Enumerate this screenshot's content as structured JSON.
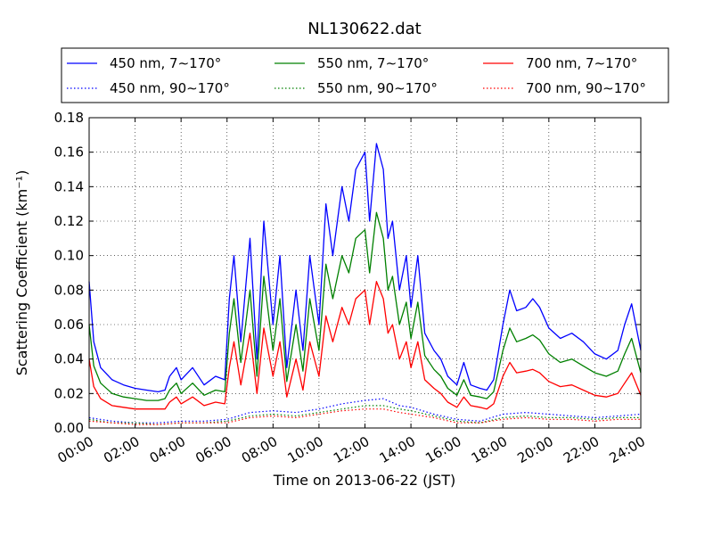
{
  "chart_data": {
    "type": "line",
    "title": "NL130622.dat",
    "xlabel": "Time on 2013-06-22 (JST)",
    "ylabel": "Scattering Coefficient (km⁻¹)",
    "xlim": [
      0,
      24
    ],
    "ylim": [
      0,
      0.18
    ],
    "x_ticks": [
      0,
      2,
      4,
      6,
      8,
      10,
      12,
      14,
      16,
      18,
      20,
      22,
      24
    ],
    "x_tick_labels": [
      "00:00",
      "02:00",
      "04:00",
      "06:00",
      "08:00",
      "10:00",
      "12:00",
      "14:00",
      "16:00",
      "18:00",
      "20:00",
      "22:00",
      "24:00"
    ],
    "y_ticks": [
      0,
      0.02,
      0.04,
      0.06,
      0.08,
      0.1,
      0.12,
      0.14,
      0.16,
      0.18
    ],
    "y_tick_labels": [
      "0.00",
      "0.02",
      "0.04",
      "0.06",
      "0.08",
      "0.10",
      "0.12",
      "0.14",
      "0.16",
      "0.18"
    ],
    "grid": true,
    "legend_position": "top",
    "series": [
      {
        "name": "450 nm, 7∼170°",
        "color": "#0000ff",
        "style": "solid",
        "x": [
          0,
          0.2,
          0.5,
          1,
          1.5,
          2,
          2.5,
          3,
          3.3,
          3.5,
          3.8,
          4,
          4.5,
          5,
          5.5,
          5.9,
          6.1,
          6.3,
          6.6,
          7,
          7.3,
          7.6,
          8,
          8.3,
          8.6,
          9,
          9.3,
          9.6,
          10,
          10.3,
          10.6,
          11,
          11.3,
          11.6,
          12,
          12.2,
          12.5,
          12.8,
          13,
          13.2,
          13.5,
          13.8,
          14,
          14.3,
          14.6,
          15,
          15.3,
          15.6,
          16,
          16.3,
          16.6,
          17,
          17.3,
          17.6,
          18,
          18.3,
          18.6,
          19,
          19.3,
          19.6,
          20,
          20.5,
          21,
          21.5,
          22,
          22.5,
          23,
          23.3,
          23.6,
          24
        ],
        "values": [
          0.085,
          0.05,
          0.035,
          0.028,
          0.025,
          0.023,
          0.022,
          0.021,
          0.022,
          0.03,
          0.035,
          0.028,
          0.035,
          0.025,
          0.03,
          0.028,
          0.075,
          0.1,
          0.05,
          0.11,
          0.04,
          0.12,
          0.06,
          0.1,
          0.035,
          0.08,
          0.045,
          0.1,
          0.06,
          0.13,
          0.1,
          0.14,
          0.12,
          0.15,
          0.16,
          0.12,
          0.165,
          0.15,
          0.11,
          0.12,
          0.08,
          0.1,
          0.07,
          0.1,
          0.055,
          0.045,
          0.04,
          0.03,
          0.025,
          0.038,
          0.025,
          0.023,
          0.022,
          0.028,
          0.06,
          0.08,
          0.068,
          0.07,
          0.075,
          0.07,
          0.058,
          0.052,
          0.055,
          0.05,
          0.043,
          0.04,
          0.045,
          0.06,
          0.072,
          0.045
        ]
      },
      {
        "name": "450 nm, 90∼170°",
        "color": "#0000ff",
        "style": "dotted",
        "x": [
          0,
          1,
          2,
          3,
          4,
          5,
          6,
          7,
          8,
          9,
          10,
          11,
          12,
          12.8,
          13.5,
          14,
          15,
          16,
          17,
          18,
          19,
          20,
          21,
          22,
          23,
          24
        ],
        "values": [
          0.006,
          0.004,
          0.003,
          0.003,
          0.004,
          0.004,
          0.005,
          0.009,
          0.01,
          0.009,
          0.011,
          0.014,
          0.016,
          0.017,
          0.013,
          0.012,
          0.008,
          0.005,
          0.004,
          0.008,
          0.009,
          0.008,
          0.007,
          0.006,
          0.007,
          0.008
        ]
      },
      {
        "name": "550 nm, 7∼170°",
        "color": "#008000",
        "style": "solid",
        "x": [
          0,
          0.2,
          0.5,
          1,
          1.5,
          2,
          2.5,
          3,
          3.3,
          3.5,
          3.8,
          4,
          4.5,
          5,
          5.5,
          5.9,
          6.1,
          6.3,
          6.6,
          7,
          7.3,
          7.6,
          8,
          8.3,
          8.6,
          9,
          9.3,
          9.6,
          10,
          10.3,
          10.6,
          11,
          11.3,
          11.6,
          12,
          12.2,
          12.5,
          12.8,
          13,
          13.2,
          13.5,
          13.8,
          14,
          14.3,
          14.6,
          15,
          15.3,
          15.6,
          16,
          16.3,
          16.6,
          17,
          17.3,
          17.6,
          18,
          18.3,
          18.6,
          19,
          19.3,
          19.6,
          20,
          20.5,
          21,
          21.5,
          22,
          22.5,
          23,
          23.3,
          23.6,
          24
        ],
        "values": [
          0.06,
          0.036,
          0.026,
          0.02,
          0.018,
          0.017,
          0.016,
          0.016,
          0.017,
          0.022,
          0.026,
          0.02,
          0.026,
          0.019,
          0.022,
          0.021,
          0.055,
          0.075,
          0.038,
          0.08,
          0.03,
          0.088,
          0.045,
          0.075,
          0.027,
          0.06,
          0.033,
          0.075,
          0.045,
          0.095,
          0.075,
          0.1,
          0.09,
          0.11,
          0.115,
          0.09,
          0.125,
          0.11,
          0.08,
          0.088,
          0.06,
          0.073,
          0.052,
          0.073,
          0.042,
          0.034,
          0.03,
          0.023,
          0.019,
          0.028,
          0.019,
          0.018,
          0.017,
          0.021,
          0.045,
          0.058,
          0.05,
          0.052,
          0.054,
          0.051,
          0.043,
          0.038,
          0.04,
          0.036,
          0.032,
          0.03,
          0.033,
          0.043,
          0.052,
          0.032
        ]
      },
      {
        "name": "550 nm, 90∼170°",
        "color": "#008000",
        "style": "dotted",
        "x": [
          0,
          1,
          2,
          3,
          4,
          5,
          6,
          7,
          8,
          9,
          10,
          11,
          12,
          12.8,
          13.5,
          14,
          15,
          16,
          17,
          18,
          19,
          20,
          21,
          22,
          23,
          24
        ],
        "values": [
          0.005,
          0.003,
          0.003,
          0.002,
          0.003,
          0.003,
          0.004,
          0.007,
          0.008,
          0.007,
          0.009,
          0.011,
          0.013,
          0.013,
          0.011,
          0.01,
          0.007,
          0.004,
          0.003,
          0.006,
          0.007,
          0.006,
          0.006,
          0.005,
          0.006,
          0.006
        ]
      },
      {
        "name": "700 nm, 7∼170°",
        "color": "#ff0000",
        "style": "solid",
        "x": [
          0,
          0.2,
          0.5,
          1,
          1.5,
          2,
          2.5,
          3,
          3.3,
          3.5,
          3.8,
          4,
          4.5,
          5,
          5.5,
          5.9,
          6.1,
          6.3,
          6.6,
          7,
          7.3,
          7.6,
          8,
          8.3,
          8.6,
          9,
          9.3,
          9.6,
          10,
          10.3,
          10.6,
          11,
          11.3,
          11.6,
          12,
          12.2,
          12.5,
          12.8,
          13,
          13.2,
          13.5,
          13.8,
          14,
          14.3,
          14.6,
          15,
          15.3,
          15.6,
          16,
          16.3,
          16.6,
          17,
          17.3,
          17.6,
          18,
          18.3,
          18.6,
          19,
          19.3,
          19.6,
          20,
          20.5,
          21,
          21.5,
          22,
          22.5,
          23,
          23.3,
          23.6,
          24
        ],
        "values": [
          0.04,
          0.024,
          0.017,
          0.013,
          0.012,
          0.011,
          0.011,
          0.011,
          0.011,
          0.015,
          0.018,
          0.014,
          0.018,
          0.013,
          0.015,
          0.014,
          0.035,
          0.05,
          0.025,
          0.055,
          0.02,
          0.058,
          0.03,
          0.05,
          0.018,
          0.04,
          0.022,
          0.05,
          0.03,
          0.065,
          0.05,
          0.07,
          0.06,
          0.075,
          0.08,
          0.06,
          0.085,
          0.075,
          0.055,
          0.06,
          0.04,
          0.05,
          0.035,
          0.05,
          0.028,
          0.023,
          0.02,
          0.015,
          0.012,
          0.018,
          0.013,
          0.012,
          0.011,
          0.014,
          0.03,
          0.038,
          0.032,
          0.033,
          0.034,
          0.032,
          0.027,
          0.024,
          0.025,
          0.022,
          0.019,
          0.018,
          0.02,
          0.026,
          0.032,
          0.019
        ]
      },
      {
        "name": "700 nm, 90∼170°",
        "color": "#ff0000",
        "style": "dotted",
        "x": [
          0,
          1,
          2,
          3,
          4,
          5,
          6,
          7,
          8,
          9,
          10,
          11,
          12,
          12.8,
          13.5,
          14,
          15,
          16,
          17,
          18,
          19,
          20,
          21,
          22,
          23,
          24
        ],
        "values": [
          0.004,
          0.003,
          0.002,
          0.002,
          0.003,
          0.003,
          0.003,
          0.006,
          0.007,
          0.006,
          0.008,
          0.01,
          0.011,
          0.011,
          0.009,
          0.008,
          0.006,
          0.003,
          0.003,
          0.005,
          0.006,
          0.005,
          0.005,
          0.004,
          0.005,
          0.005
        ]
      }
    ]
  }
}
